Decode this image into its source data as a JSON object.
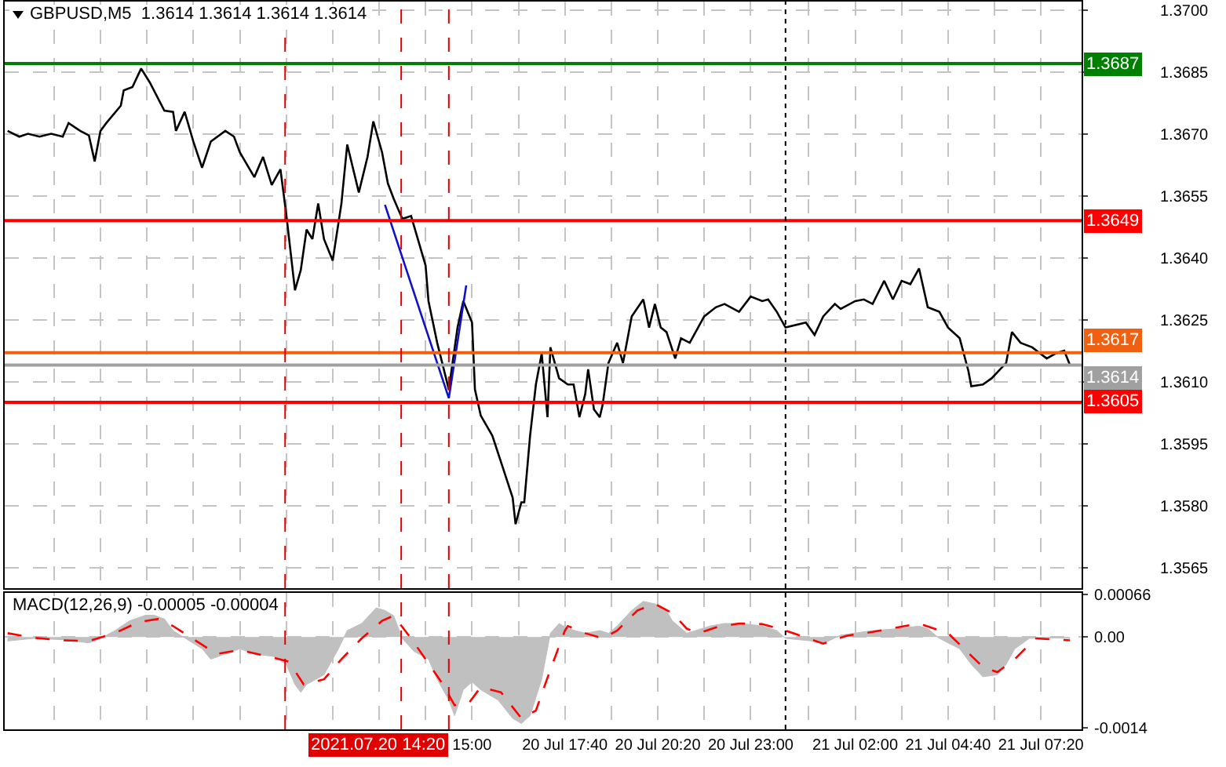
{
  "chart_data": [
    {
      "type": "line",
      "title": "GBPUSD,M5  1.3614 1.3614 1.3614 1.3614",
      "grid": true,
      "tick_labels": "y",
      "xlim": [
        "2021-07-20T01:35",
        "2021-07-21T08:30"
      ],
      "ylim": [
        1.356,
        1.3702
      ],
      "xticks": [
        {
          "value": "2021-07-20T03:00",
          "label": null
        },
        {
          "value": "2021-07-20T04:20",
          "label": null
        },
        {
          "value": "2021-07-20T05:40",
          "label": null
        },
        {
          "value": "2021-07-20T07:00",
          "label": null
        },
        {
          "value": "2021-07-20T08:20",
          "label": null
        },
        {
          "value": "2021-07-20T09:40",
          "label": null
        },
        {
          "value": "2021-07-20T11:00",
          "label": null
        },
        {
          "value": "2021-07-20T12:20",
          "label": null
        },
        {
          "value": "2021-07-20T13:40",
          "label": null
        },
        {
          "value": "2021-07-20T15:00",
          "label": null
        },
        {
          "value": "2021-07-20T16:20",
          "label": null
        },
        {
          "value": "2021-07-20T17:40",
          "label": null
        },
        {
          "value": "2021-07-20T19:00",
          "label": null
        },
        {
          "value": "2021-07-20T20:20",
          "label": null
        },
        {
          "value": "2021-07-20T21:40",
          "label": null
        },
        {
          "value": "2021-07-20T23:00",
          "label": null
        },
        {
          "value": "2021-07-21T00:40",
          "label": null
        },
        {
          "value": "2021-07-21T02:00",
          "label": null
        },
        {
          "value": "2021-07-21T03:20",
          "label": null
        },
        {
          "value": "2021-07-21T04:40",
          "label": null
        },
        {
          "value": "2021-07-21T06:00",
          "label": null
        },
        {
          "value": "2021-07-21T07:20",
          "label": null
        }
      ],
      "yticks": [
        1.3565,
        {
          "value": 1.358,
          "label": "1.3580"
        },
        1.3595,
        {
          "value": 1.361,
          "label": "1.3610"
        },
        1.3625,
        {
          "value": 1.364,
          "label": "1.3640"
        },
        1.3655,
        {
          "value": 1.367,
          "label": "1.3670"
        },
        1.3685,
        {
          "value": 1.37,
          "label": "1.3700"
        }
      ],
      "x": [
        "2021-07-20T01:40",
        "2021-07-20T02:00",
        "2021-07-20T02:15",
        "2021-07-20T02:35",
        "2021-07-20T02:55",
        "2021-07-20T03:15",
        "2021-07-20T03:25",
        "2021-07-20T03:45",
        "2021-07-20T04:00",
        "2021-07-20T04:10",
        "2021-07-20T04:20",
        "2021-07-20T04:30",
        "2021-07-20T04:55",
        "2021-07-20T05:00",
        "2021-07-20T05:15",
        "2021-07-20T05:30",
        "2021-07-20T05:45",
        "2021-07-20T06:10",
        "2021-07-20T06:25",
        "2021-07-20T06:30",
        "2021-07-20T06:45",
        "2021-07-20T07:00",
        "2021-07-20T07:15",
        "2021-07-20T07:30",
        "2021-07-20T07:55",
        "2021-07-20T08:10",
        "2021-07-20T08:20",
        "2021-07-20T08:45",
        "2021-07-20T09:00",
        "2021-07-20T09:15",
        "2021-07-20T09:30",
        "2021-07-20T09:40",
        "2021-07-20T09:55",
        "2021-07-20T10:05",
        "2021-07-20T10:15",
        "2021-07-20T10:25",
        "2021-07-20T10:35",
        "2021-07-20T10:45",
        "2021-07-20T11:00",
        "2021-07-20T11:15",
        "2021-07-20T11:25",
        "2021-07-20T11:45",
        "2021-07-20T12:00",
        "2021-07-20T12:10",
        "2021-07-20T12:25",
        "2021-07-20T12:35",
        "2021-07-20T12:45",
        "2021-07-20T13:00",
        "2021-07-20T13:15",
        "2021-07-20T13:40",
        "2021-07-20T13:45",
        "2021-07-20T14:00",
        "2021-07-20T14:20",
        "2021-07-20T14:35",
        "2021-07-20T14:45",
        "2021-07-20T15:00",
        "2021-07-20T15:05",
        "2021-07-20T15:15",
        "2021-07-20T15:35",
        "2021-07-20T15:50",
        "2021-07-20T16:10",
        "2021-07-20T16:15",
        "2021-07-20T16:25",
        "2021-07-20T16:30",
        "2021-07-20T16:40",
        "2021-07-20T16:50",
        "2021-07-20T17:00",
        "2021-07-20T17:10",
        "2021-07-20T17:15",
        "2021-07-20T17:30",
        "2021-07-20T17:45",
        "2021-07-20T17:55",
        "2021-07-20T18:05",
        "2021-07-20T18:15",
        "2021-07-20T18:20",
        "2021-07-20T18:30",
        "2021-07-20T18:40",
        "2021-07-20T18:45",
        "2021-07-20T18:55",
        "2021-07-20T19:10",
        "2021-07-20T19:20",
        "2021-07-20T19:30",
        "2021-07-20T19:35",
        "2021-07-20T19:55",
        "2021-07-20T20:05",
        "2021-07-20T20:15",
        "2021-07-20T20:25",
        "2021-07-20T20:35",
        "2021-07-20T20:50",
        "2021-07-20T21:00",
        "2021-07-20T21:15",
        "2021-07-20T21:40",
        "2021-07-20T22:00",
        "2021-07-20T22:15",
        "2021-07-20T22:40",
        "2021-07-20T23:00",
        "2021-07-20T23:20",
        "2021-07-20T23:30",
        "2021-07-20T23:45",
        "2021-07-21T00:00",
        "2021-07-21T00:35",
        "2021-07-21T00:50",
        "2021-07-21T01:05",
        "2021-07-21T01:25",
        "2021-07-21T01:35",
        "2021-07-21T02:00",
        "2021-07-21T02:15",
        "2021-07-21T02:30",
        "2021-07-21T02:50",
        "2021-07-21T03:05",
        "2021-07-21T03:20",
        "2021-07-21T03:35",
        "2021-07-21T03:50",
        "2021-07-21T04:05",
        "2021-07-21T04:25",
        "2021-07-21T04:40",
        "2021-07-21T05:00",
        "2021-07-21T05:15",
        "2021-07-21T05:20",
        "2021-07-21T05:40",
        "2021-07-21T05:55",
        "2021-07-21T06:20",
        "2021-07-21T06:30",
        "2021-07-21T06:45",
        "2021-07-21T07:05",
        "2021-07-21T07:30",
        "2021-07-21T07:45",
        "2021-07-21T08:00",
        "2021-07-21T08:10"
      ],
      "series": [
        {
          "color": "#000000",
          "values": [
            1.36707,
            1.36693,
            1.367,
            1.36693,
            1.367,
            1.36693,
            1.36726,
            1.36707,
            1.36696,
            1.36633,
            1.36707,
            1.36726,
            1.36768,
            1.36805,
            1.36813,
            1.36858,
            1.36824,
            1.36756,
            1.36753,
            1.36707,
            1.36753,
            1.36681,
            1.36618,
            1.36681,
            1.36707,
            1.36693,
            1.36655,
            1.36595,
            1.36644,
            1.36576,
            1.36614,
            1.36505,
            1.36321,
            1.3637,
            1.36468,
            1.36445,
            1.36531,
            1.36445,
            1.36393,
            1.36531,
            1.36674,
            1.36558,
            1.36644,
            1.3673,
            1.36655,
            1.3658,
            1.36543,
            1.36494,
            1.36501,
            1.36381,
            1.36295,
            1.36194,
            1.36081,
            1.36231,
            1.36295,
            1.36243,
            1.36081,
            1.36018,
            1.35969,
            1.35905,
            1.35819,
            1.35755,
            1.35808,
            1.35808,
            1.35969,
            1.36093,
            1.36168,
            1.36014,
            1.36183,
            1.36108,
            1.36093,
            1.36093,
            1.36014,
            1.3607,
            1.3613,
            1.36033,
            1.36014,
            1.36044,
            1.36145,
            1.36194,
            1.36145,
            1.3622,
            1.36258,
            1.36299,
            1.36231,
            1.36288,
            1.36231,
            1.3622,
            1.36156,
            1.36205,
            1.36194,
            1.36258,
            1.3628,
            1.36288,
            1.36269,
            1.36306,
            1.36295,
            1.36299,
            1.36269,
            1.36231,
            1.36243,
            1.36213,
            1.36258,
            1.36288,
            1.36276,
            1.36295,
            1.36299,
            1.36288,
            1.36344,
            1.36299,
            1.36344,
            1.36336,
            1.36374,
            1.3628,
            1.36269,
            1.36231,
            1.36205,
            1.36126,
            1.36089,
            1.36093,
            1.36108,
            1.36145,
            1.3622,
            1.36194,
            1.36183,
            1.36156,
            1.36168,
            1.36175,
            1.3614
          ]
        },
        {
          "type": "line",
          "color": "#1010c8",
          "x": [
            "2021-07-20T12:30",
            "2021-07-20T14:20",
            "2021-07-20T14:50"
          ],
          "values": [
            1.36528,
            1.3606,
            1.36333
          ]
        }
      ],
      "ref_lines": [
        {
          "axis": "y",
          "value": 1.3687,
          "label": "1.3687",
          "color": "#008000"
        },
        {
          "axis": "y",
          "value": 1.3649,
          "label": "1.3649",
          "color": "#ff0000"
        },
        {
          "axis": "y",
          "value": 1.3617,
          "label": "1.3617",
          "color": "#f06010"
        },
        {
          "axis": "y",
          "value": 1.3614,
          "label": "1.3614",
          "color": "#a0a0a0"
        },
        {
          "axis": "y",
          "value": 1.3605,
          "label": "1.3605",
          "color": "#ff0000"
        },
        {
          "axis": "x",
          "value": "2021-07-20T09:38",
          "color": "#e00000",
          "line_style": "dashed"
        },
        {
          "axis": "x",
          "value": "2021-07-20T12:58",
          "color": "#e00000",
          "line_style": "dashed"
        },
        {
          "axis": "x",
          "value": "2021-07-20T14:20",
          "color": "#e00000",
          "line_style": "dashed"
        },
        {
          "axis": "x",
          "value": "2021-07-21T00:00",
          "color": "#000000",
          "line_style": "dotted"
        }
      ]
    },
    {
      "type": "area",
      "title": "MACD(12,26,9) -0.00005 -0.00004",
      "grid": true,
      "xlim": [
        "2021-07-20T01:35",
        "2021-07-21T08:30"
      ],
      "ylim": [
        -0.00142,
        0.00068
      ],
      "xticks": [
        {
          "value": "2021-07-20T03:00",
          "label": null
        },
        {
          "value": "2021-07-20T04:20",
          "label": null
        },
        {
          "value": "2021-07-20T05:40",
          "label": null
        },
        {
          "value": "2021-07-20T07:00",
          "label": null
        },
        {
          "value": "2021-07-20T08:20",
          "label": null
        },
        {
          "value": "2021-07-20T09:40",
          "label": null
        },
        {
          "value": "2021-07-20T11:00",
          "label": null
        },
        {
          "value": "2021-07-20T12:20",
          "label": null
        },
        {
          "value": "2021-07-20T13:40",
          "label": null
        },
        {
          "value": "2021-07-20T15:00",
          "label": "15:00"
        },
        {
          "value": "2021-07-20T16:20",
          "label": null
        },
        {
          "value": "2021-07-20T17:40",
          "label": "20 Jul 17:40"
        },
        {
          "value": "2021-07-20T19:00",
          "label": null
        },
        {
          "value": "2021-07-20T20:20",
          "label": "20 Jul 20:20"
        },
        {
          "value": "2021-07-20T21:40",
          "label": null
        },
        {
          "value": "2021-07-20T23:00",
          "label": "20 Jul 23:00"
        },
        {
          "value": "2021-07-21T00:40",
          "label": null
        },
        {
          "value": "2021-07-21T02:00",
          "label": "21 Jul 02:00"
        },
        {
          "value": "2021-07-21T03:20",
          "label": null
        },
        {
          "value": "2021-07-21T04:40",
          "label": "21 Jul 04:40"
        },
        {
          "value": "2021-07-21T06:00",
          "label": null
        },
        {
          "value": "2021-07-21T07:20",
          "label": "21 Jul 07:20"
        }
      ],
      "yticks": [
        -0.0014,
        {
          "value": 0,
          "label": "0.00"
        },
        0.00066
      ],
      "x": [
        "2021-07-20T01:40",
        "2021-07-20T02:25",
        "2021-07-20T03:15",
        "2021-07-20T04:00",
        "2021-07-20T04:20",
        "2021-07-20T04:45",
        "2021-07-20T05:10",
        "2021-07-20T05:45",
        "2021-07-20T06:10",
        "2021-07-20T06:25",
        "2021-07-20T06:50",
        "2021-07-20T07:15",
        "2021-07-20T07:30",
        "2021-07-20T07:55",
        "2021-07-20T08:20",
        "2021-07-20T08:45",
        "2021-07-20T09:20",
        "2021-07-20T09:40",
        "2021-07-20T09:55",
        "2021-07-20T10:05",
        "2021-07-20T10:15",
        "2021-07-20T10:45",
        "2021-07-20T11:10",
        "2021-07-20T11:25",
        "2021-07-20T11:50",
        "2021-07-20T12:15",
        "2021-07-20T12:30",
        "2021-07-20T12:45",
        "2021-07-20T13:00",
        "2021-07-20T13:20",
        "2021-07-20T13:45",
        "2021-07-20T14:00",
        "2021-07-20T14:20",
        "2021-07-20T14:30",
        "2021-07-20T14:45",
        "2021-07-20T15:00",
        "2021-07-20T15:15",
        "2021-07-20T15:45",
        "2021-07-20T16:10",
        "2021-07-20T16:25",
        "2021-07-20T16:40",
        "2021-07-20T17:00",
        "2021-07-20T17:15",
        "2021-07-20T17:30",
        "2021-07-20T17:45",
        "2021-07-20T18:15",
        "2021-07-20T18:40",
        "2021-07-20T18:55",
        "2021-07-20T19:10",
        "2021-07-20T19:35",
        "2021-07-20T19:55",
        "2021-07-20T20:15",
        "2021-07-20T20:35",
        "2021-07-20T20:45",
        "2021-07-20T21:10",
        "2021-07-20T21:25",
        "2021-07-20T21:50",
        "2021-07-20T22:15",
        "2021-07-20T22:45",
        "2021-07-20T23:20",
        "2021-07-20T23:45",
        "2021-07-21T00:00",
        "2021-07-21T00:45",
        "2021-07-21T01:05",
        "2021-07-21T01:35",
        "2021-07-21T02:30",
        "2021-07-21T03:15",
        "2021-07-21T03:50",
        "2021-07-21T04:05",
        "2021-07-21T04:25",
        "2021-07-21T05:00",
        "2021-07-21T05:20",
        "2021-07-21T05:40",
        "2021-07-21T06:05",
        "2021-07-21T06:20",
        "2021-07-21T06:35",
        "2021-07-21T07:00",
        "2021-07-21T07:30",
        "2021-07-21T08:10"
      ],
      "series": [
        {
          "color": "#c0c0c0",
          "values": [
            -6e-05,
            -2e-05,
            -4e-05,
            -9e-05,
            -2e-05,
            0.0001,
            0.00025,
            0.00036,
            0.00028,
            0.0001,
            -4e-05,
            -0.00018,
            -0.00034,
            -0.00026,
            -0.00018,
            -0.00026,
            -0.0003,
            -0.00042,
            -0.00073,
            -0.00085,
            -0.00073,
            -0.00058,
            -0.00018,
            0.0001,
            0.00021,
            0.00045,
            0.00041,
            0.00033,
            -2e-05,
            -0.00022,
            -0.00034,
            -0.00065,
            -0.00097,
            -0.00121,
            -0.00081,
            -0.00069,
            -0.00081,
            -0.00097,
            -0.00125,
            -0.00133,
            -0.00121,
            -0.00065,
            6e-05,
            0.00021,
            0.00013,
            6e-05,
            0.0001,
            6e-05,
            0.00017,
            0.00041,
            0.00055,
            0.00051,
            0.00041,
            0.00025,
            6e-05,
            0.0001,
            0.00017,
            0.00021,
            0.00021,
            0.00017,
            0.0001,
            -2e-05,
            -6e-05,
            -0.0001,
            3e-05,
            0.0001,
            0.00013,
            0.00017,
            0.00013,
            -2e-05,
            -0.00018,
            -0.00042,
            -0.00061,
            -0.00058,
            -0.00042,
            -0.00018,
            -2e-05,
            -1e-05,
            -2e-05
          ]
        },
        {
          "type": "line",
          "color": "#ff0000",
          "line_style": "dashed",
          "x": [
            "2021-07-20T01:40",
            "2021-07-20T02:25",
            "2021-07-20T03:15",
            "2021-07-20T04:00",
            "2021-07-20T04:45",
            "2021-07-20T05:25",
            "2021-07-20T06:00",
            "2021-07-20T06:25",
            "2021-07-20T07:05",
            "2021-07-20T07:40",
            "2021-07-20T08:20",
            "2021-07-20T09:10",
            "2021-07-20T09:45",
            "2021-07-20T10:10",
            "2021-07-20T10:45",
            "2021-07-20T11:15",
            "2021-07-20T11:50",
            "2021-07-20T12:25",
            "2021-07-20T12:45",
            "2021-07-20T13:15",
            "2021-07-20T13:40",
            "2021-07-20T14:10",
            "2021-07-20T14:30",
            "2021-07-20T14:55",
            "2021-07-20T15:15",
            "2021-07-20T15:50",
            "2021-07-20T16:25",
            "2021-07-20T16:50",
            "2021-07-20T17:15",
            "2021-07-20T17:40",
            "2021-07-20T17:45",
            "2021-07-20T18:15",
            "2021-07-20T18:45",
            "2021-07-20T19:10",
            "2021-07-20T19:45",
            "2021-07-20T20:15",
            "2021-07-20T20:45",
            "2021-07-20T21:10",
            "2021-07-20T21:30",
            "2021-07-20T22:00",
            "2021-07-20T22:40",
            "2021-07-20T23:20",
            "2021-07-21T00:00",
            "2021-07-21T01:05",
            "2021-07-21T01:45",
            "2021-07-21T02:30",
            "2021-07-21T03:50",
            "2021-07-21T04:40",
            "2021-07-21T05:40",
            "2021-07-21T06:05",
            "2021-07-21T06:35",
            "2021-07-21T07:10",
            "2021-07-21T08:10"
          ],
          "values": [
            6e-05,
            -1e-05,
            -5e-05,
            -6e-05,
            6e-05,
            0.00023,
            0.00028,
            0.00017,
            -6e-05,
            -0.00026,
            -0.0002,
            -0.0003,
            -0.00038,
            -0.00073,
            -0.00065,
            -0.00034,
            -2e-05,
            0.00025,
            0.00033,
            -2e-05,
            -0.00034,
            -0.00073,
            -0.00105,
            -0.00101,
            -0.00077,
            -0.00085,
            -0.00125,
            -0.00113,
            -0.0005,
            0.0001,
            0.00017,
            6e-05,
            -2e-05,
            0.0001,
            0.00041,
            0.00051,
            0.00037,
            0.00013,
            6e-05,
            0.00015,
            0.00021,
            0.0002,
            0.0001,
            -0.0001,
            2e-05,
            8e-05,
            0.00021,
            6e-05,
            -0.00046,
            -0.00054,
            -0.00034,
            -2e-05,
            -5e-05
          ]
        }
      ],
      "ref_lines": [
        {
          "axis": "x",
          "value": "2021-07-20T09:38",
          "color": "#e00000",
          "line_style": "dashed"
        },
        {
          "axis": "x",
          "value": "2021-07-20T12:58",
          "color": "#e00000",
          "line_style": "dashed"
        },
        {
          "axis": "x",
          "value": "2021-07-20T14:20",
          "label": "2021.07.20 14:20",
          "color": "#e00000",
          "line_style": "dashed"
        },
        {
          "axis": "x",
          "value": "2021-07-21T00:00",
          "color": "#000000",
          "line_style": "dotted"
        }
      ]
    }
  ]
}
